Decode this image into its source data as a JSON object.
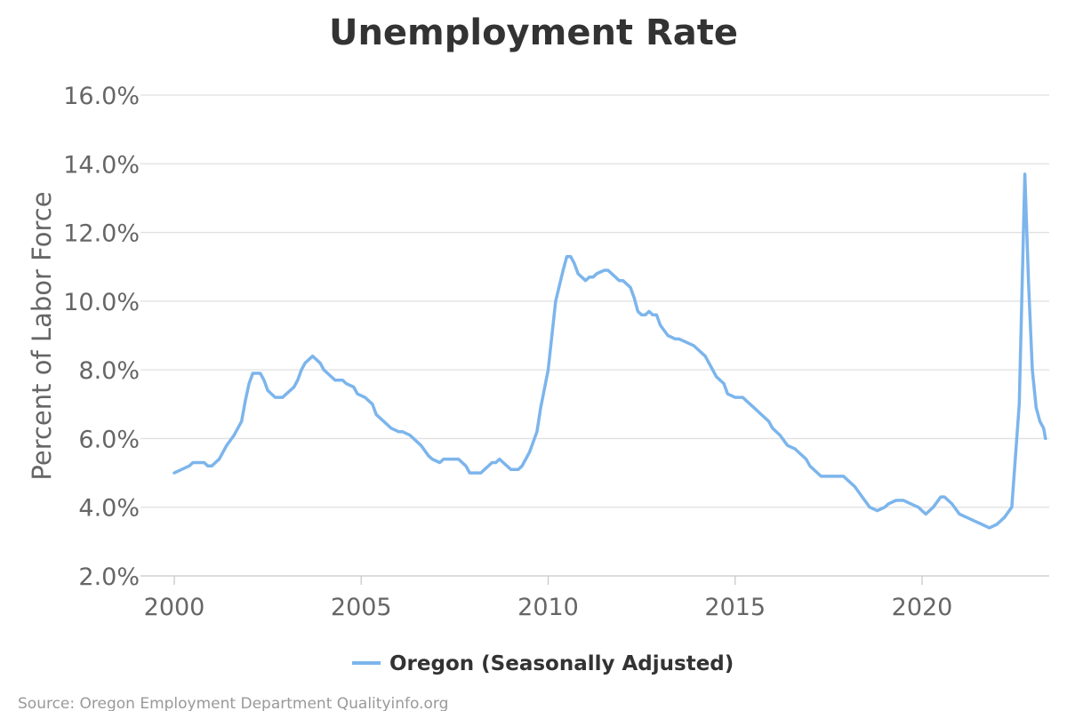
{
  "chart_data": {
    "type": "line",
    "title": "Unemployment Rate",
    "ylabel": "Percent of Labor Force",
    "xlabel": "",
    "xlim": [
      2000,
      2023.3
    ],
    "ylim": [
      2,
      16.5
    ],
    "xticks": [
      2000,
      2005,
      2010,
      2015,
      2020
    ],
    "yticks": [
      2,
      4,
      6,
      8,
      10,
      12,
      14,
      16
    ],
    "ytick_labels": [
      "2.0%",
      "4.0%",
      "6.0%",
      "8.0%",
      "10.0%",
      "12.0%",
      "14.0%",
      "16.0%"
    ],
    "grid": "horizontal",
    "legend_position": "bottom",
    "source": "Source: Oregon Employment Department Qualityinfo.org",
    "series": [
      {
        "name": "Oregon (Seasonally Adjusted)",
        "color": "#7cb5ec",
        "points": [
          [
            2000.0,
            5.0
          ],
          [
            2000.2,
            5.1
          ],
          [
            2000.4,
            5.2
          ],
          [
            2000.5,
            5.3
          ],
          [
            2000.7,
            5.3
          ],
          [
            2000.8,
            5.3
          ],
          [
            2000.9,
            5.2
          ],
          [
            2001.0,
            5.2
          ],
          [
            2001.2,
            5.4
          ],
          [
            2001.4,
            5.8
          ],
          [
            2001.6,
            6.1
          ],
          [
            2001.8,
            6.5
          ],
          [
            2001.9,
            7.1
          ],
          [
            2002.0,
            7.6
          ],
          [
            2002.1,
            7.9
          ],
          [
            2002.3,
            7.9
          ],
          [
            2002.4,
            7.7
          ],
          [
            2002.5,
            7.4
          ],
          [
            2002.7,
            7.2
          ],
          [
            2002.9,
            7.2
          ],
          [
            2003.0,
            7.3
          ],
          [
            2003.2,
            7.5
          ],
          [
            2003.3,
            7.7
          ],
          [
            2003.4,
            8.0
          ],
          [
            2003.5,
            8.2
          ],
          [
            2003.7,
            8.4
          ],
          [
            2003.9,
            8.2
          ],
          [
            2004.0,
            8.0
          ],
          [
            2004.2,
            7.8
          ],
          [
            2004.3,
            7.7
          ],
          [
            2004.5,
            7.7
          ],
          [
            2004.6,
            7.6
          ],
          [
            2004.8,
            7.5
          ],
          [
            2004.9,
            7.3
          ],
          [
            2005.1,
            7.2
          ],
          [
            2005.3,
            7.0
          ],
          [
            2005.4,
            6.7
          ],
          [
            2005.6,
            6.5
          ],
          [
            2005.8,
            6.3
          ],
          [
            2006.0,
            6.2
          ],
          [
            2006.1,
            6.2
          ],
          [
            2006.3,
            6.1
          ],
          [
            2006.4,
            6.0
          ],
          [
            2006.6,
            5.8
          ],
          [
            2006.8,
            5.5
          ],
          [
            2006.9,
            5.4
          ],
          [
            2007.1,
            5.3
          ],
          [
            2007.2,
            5.4
          ],
          [
            2007.3,
            5.4
          ],
          [
            2007.5,
            5.4
          ],
          [
            2007.6,
            5.4
          ],
          [
            2007.8,
            5.2
          ],
          [
            2007.9,
            5.0
          ],
          [
            2008.0,
            5.0
          ],
          [
            2008.2,
            5.0
          ],
          [
            2008.3,
            5.1
          ],
          [
            2008.5,
            5.3
          ],
          [
            2008.6,
            5.3
          ],
          [
            2008.7,
            5.4
          ],
          [
            2008.8,
            5.3
          ],
          [
            2008.9,
            5.2
          ],
          [
            2009.0,
            5.1
          ],
          [
            2009.2,
            5.1
          ],
          [
            2009.3,
            5.2
          ],
          [
            2009.5,
            5.6
          ],
          [
            2009.7,
            6.2
          ],
          [
            2009.8,
            6.9
          ],
          [
            2010.0,
            8.0
          ],
          [
            2010.1,
            9.0
          ],
          [
            2010.2,
            10.0
          ],
          [
            2010.4,
            10.9
          ],
          [
            2010.5,
            11.3
          ],
          [
            2010.6,
            11.3
          ],
          [
            2010.7,
            11.1
          ],
          [
            2010.8,
            10.8
          ],
          [
            2010.9,
            10.7
          ],
          [
            2011.0,
            10.6
          ],
          [
            2011.1,
            10.7
          ],
          [
            2011.2,
            10.7
          ],
          [
            2011.3,
            10.8
          ],
          [
            2011.5,
            10.9
          ],
          [
            2011.6,
            10.9
          ],
          [
            2011.7,
            10.8
          ],
          [
            2011.8,
            10.7
          ],
          [
            2011.9,
            10.6
          ],
          [
            2012.0,
            10.6
          ],
          [
            2012.2,
            10.4
          ],
          [
            2012.3,
            10.1
          ],
          [
            2012.4,
            9.7
          ],
          [
            2012.5,
            9.6
          ],
          [
            2012.6,
            9.6
          ],
          [
            2012.7,
            9.7
          ],
          [
            2012.8,
            9.6
          ],
          [
            2012.9,
            9.6
          ],
          [
            2013.0,
            9.3
          ],
          [
            2013.2,
            9.0
          ],
          [
            2013.4,
            8.9
          ],
          [
            2013.5,
            8.9
          ],
          [
            2013.7,
            8.8
          ],
          [
            2013.9,
            8.7
          ],
          [
            2014.0,
            8.6
          ],
          [
            2014.2,
            8.4
          ],
          [
            2014.4,
            8.0
          ],
          [
            2014.5,
            7.8
          ],
          [
            2014.7,
            7.6
          ],
          [
            2014.8,
            7.3
          ],
          [
            2015.0,
            7.2
          ],
          [
            2015.2,
            7.2
          ],
          [
            2015.3,
            7.1
          ],
          [
            2015.5,
            6.9
          ],
          [
            2015.7,
            6.7
          ],
          [
            2015.9,
            6.5
          ],
          [
            2016.0,
            6.3
          ],
          [
            2016.2,
            6.1
          ],
          [
            2016.4,
            5.8
          ],
          [
            2016.6,
            5.7
          ],
          [
            2016.7,
            5.6
          ],
          [
            2016.9,
            5.4
          ],
          [
            2017.0,
            5.2
          ],
          [
            2017.1,
            5.1
          ],
          [
            2017.2,
            5.0
          ],
          [
            2017.3,
            4.9
          ],
          [
            2017.5,
            4.9
          ],
          [
            2017.7,
            4.9
          ],
          [
            2017.9,
            4.9
          ],
          [
            2018.0,
            4.8
          ],
          [
            2018.2,
            4.6
          ],
          [
            2018.4,
            4.3
          ],
          [
            2018.6,
            4.0
          ],
          [
            2018.8,
            3.9
          ],
          [
            2019.0,
            4.0
          ],
          [
            2019.1,
            4.1
          ],
          [
            2019.3,
            4.2
          ],
          [
            2019.5,
            4.2
          ],
          [
            2019.7,
            4.1
          ],
          [
            2019.9,
            4.0
          ],
          [
            2020.0,
            3.9
          ],
          [
            2020.1,
            3.8
          ],
          [
            2020.3,
            4.0
          ],
          [
            2020.5,
            4.3
          ],
          [
            2020.6,
            4.3
          ],
          [
            2020.8,
            4.1
          ],
          [
            2021.0,
            3.8
          ],
          [
            2021.2,
            3.7
          ],
          [
            2021.4,
            3.6
          ],
          [
            2021.6,
            3.5
          ],
          [
            2021.8,
            3.4
          ],
          [
            2022.0,
            3.5
          ],
          [
            2022.2,
            3.7
          ],
          [
            2022.4,
            4.0
          ],
          [
            2022.6,
            7.0
          ],
          [
            2022.75,
            13.7
          ],
          [
            2022.85,
            10.5
          ],
          [
            2022.95,
            8.0
          ],
          [
            2023.05,
            6.9
          ],
          [
            2023.15,
            6.5
          ],
          [
            2023.25,
            6.3
          ],
          [
            2023.3,
            6.0
          ]
        ]
      }
    ]
  }
}
